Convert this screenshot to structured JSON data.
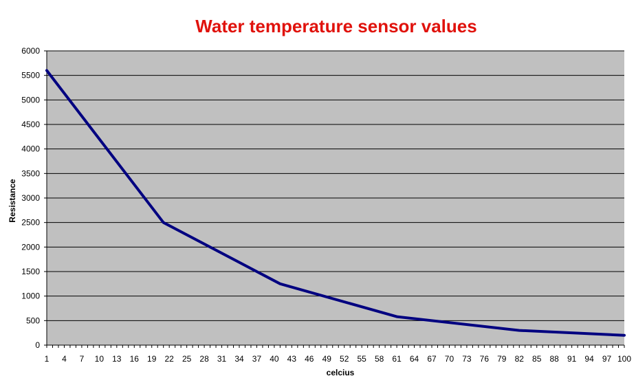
{
  "chart_data": {
    "type": "line",
    "title": "Water temperature sensor values",
    "xlabel": "celcius",
    "ylabel": "Resistance",
    "x_tick_labels": [
      "1",
      "4",
      "7",
      "10",
      "13",
      "16",
      "19",
      "22",
      "25",
      "28",
      "31",
      "34",
      "37",
      "40",
      "43",
      "46",
      "49",
      "52",
      "55",
      "58",
      "61",
      "64",
      "67",
      "70",
      "73",
      "76",
      "79",
      "82",
      "85",
      "88",
      "91",
      "94",
      "97",
      "100"
    ],
    "y_tick_labels": [
      "0",
      "500",
      "1000",
      "1500",
      "2000",
      "2500",
      "3000",
      "3500",
      "4000",
      "4500",
      "5000",
      "5500",
      "6000"
    ],
    "xlim": [
      1,
      100
    ],
    "ylim": [
      0,
      6000
    ],
    "grid": "horizontal",
    "legend": "none",
    "series": [
      {
        "x": [
          1,
          21,
          41,
          61,
          82,
          100
        ],
        "y": [
          5600,
          2500,
          1250,
          580,
          300,
          200
        ]
      }
    ],
    "colors": {
      "plot_background": "#c0c0c0",
      "gridline": "#000000",
      "line": "#000080",
      "title": "#e0120c"
    }
  }
}
